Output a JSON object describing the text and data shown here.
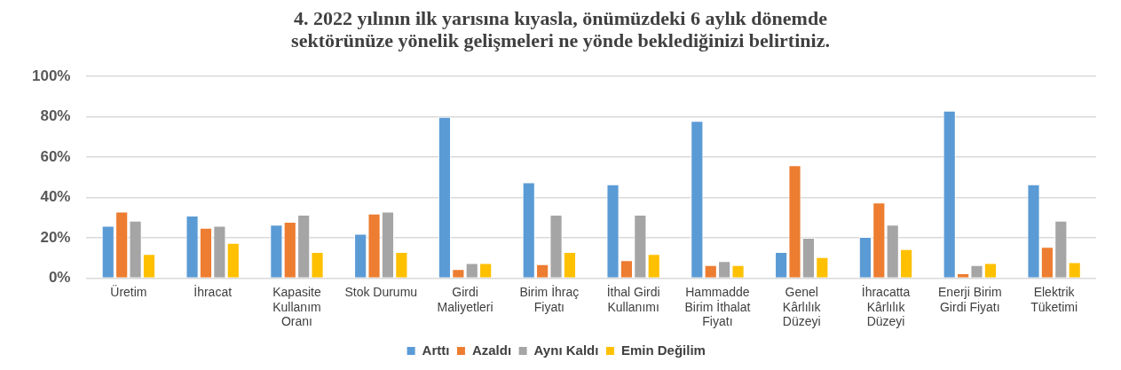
{
  "chart_data": {
    "type": "bar",
    "title": "4. 2022 yılının ilk yarısına kıyasla, önümüzdeki 6 aylık dönemde sektörünüze yönelik gelişmeleri ne yönde beklediğinizi belirtiniz.",
    "categories": [
      "Üretim",
      "İhracat",
      "Kapasite Kullanım Oranı",
      "Stok Durumu",
      "Girdi Maliyetleri",
      "Birim İhraç Fiyatı",
      "İthal Girdi Kullanımı",
      "Hammadde Birim İthalat Fiyatı",
      "Genel Kârlılık Düzeyi",
      "İhracatta Kârlılık Düzeyi",
      "Enerji Birim Girdi Fiyatı",
      "Elektrik Tüketimi"
    ],
    "series": [
      {
        "name": "Arttı",
        "color": "#5b9bd5",
        "values": [
          26,
          31,
          26.5,
          22,
          80,
          47.5,
          46.5,
          78,
          13,
          20.5,
          83,
          46.5
        ]
      },
      {
        "name": "Azaldı",
        "color": "#ed7d31",
        "values": [
          33,
          25,
          28,
          32,
          4.5,
          7,
          9,
          6.5,
          56,
          37.5,
          2.5,
          15.5
        ]
      },
      {
        "name": "Aynı Kaldı",
        "color": "#a5a5a5",
        "values": [
          28.5,
          26,
          31.5,
          33,
          7.5,
          31.5,
          31.5,
          8.5,
          20,
          26.5,
          6.5,
          28.5
        ]
      },
      {
        "name": "Emin Değilim",
        "color": "#ffc000",
        "values": [
          12,
          17.5,
          13,
          13,
          7.5,
          13,
          12,
          6.5,
          10.5,
          14.5,
          7.5,
          8
        ]
      }
    ],
    "ylim": [
      0,
      100
    ],
    "yticks": [
      {
        "value": 0,
        "label": "0%"
      },
      {
        "value": 20,
        "label": "20%"
      },
      {
        "value": 40,
        "label": "40%"
      },
      {
        "value": 60,
        "label": "60%"
      },
      {
        "value": 80,
        "label": "80%"
      },
      {
        "value": 100,
        "label": "100%"
      }
    ],
    "grid": "y",
    "legend": "bottom"
  }
}
